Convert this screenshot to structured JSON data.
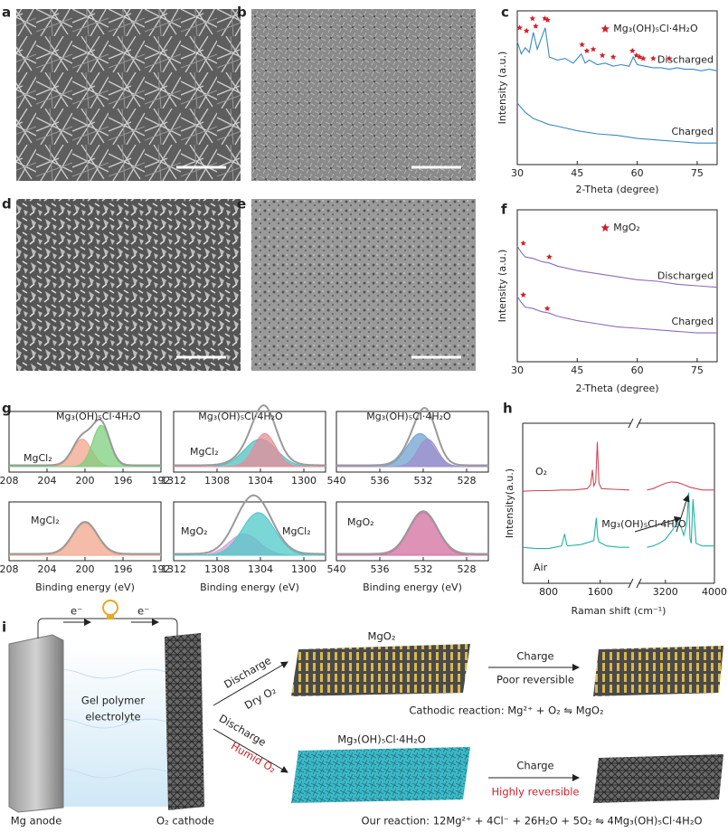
{
  "panel_labels": [
    "a",
    "b",
    "c",
    "d",
    "e",
    "f",
    "g",
    "h",
    "i"
  ],
  "chart_data": [
    {
      "type": "xrd",
      "xlabel": "2-Theta (degree)",
      "ylabel": "Intensity (a.u.)",
      "xlim": [
        30,
        80
      ],
      "xticks": [
        30,
        45,
        60,
        75
      ],
      "ylim": [
        0,
        10
      ],
      "legend": "Mg₃(OH)₅Cl·4H₂O",
      "marker_color": "#d0202a",
      "series": [
        {
          "name": "Discharged",
          "color": "#3b87c7",
          "x": [
            30,
            31,
            32,
            33,
            34,
            35,
            36,
            37,
            38,
            40,
            42,
            44,
            46,
            47,
            48,
            50,
            52,
            54,
            56,
            58,
            59,
            60,
            62,
            64,
            66,
            68,
            70,
            72,
            74,
            76,
            78,
            80
          ],
          "values": [
            8.0,
            7.2,
            7.6,
            7.3,
            8.6,
            7.5,
            8.2,
            8.9,
            7.0,
            6.8,
            6.9,
            6.6,
            7.2,
            6.6,
            6.8,
            6.5,
            6.6,
            6.4,
            6.5,
            6.4,
            7.0,
            6.5,
            6.4,
            6.3,
            6.3,
            6.2,
            6.3,
            6.2,
            6.2,
            6.1,
            6.2,
            6.1
          ]
        },
        {
          "name": "Charged",
          "color": "#3b87c7",
          "x": [
            30,
            32,
            34,
            36,
            38,
            40,
            45,
            50,
            55,
            60,
            65,
            70,
            75,
            80
          ],
          "values": [
            4.0,
            3.4,
            3.0,
            2.8,
            2.6,
            2.5,
            2.2,
            2.0,
            1.9,
            1.7,
            1.6,
            1.5,
            1.4,
            1.4
          ]
        }
      ],
      "peaks": {
        "x": [
          30.6,
          32.3,
          33.8,
          34.6,
          36.9,
          37.6,
          46.2,
          47.4,
          49,
          51.3,
          54,
          58.8,
          59.8,
          60.6,
          61.5,
          64,
          68
        ],
        "y": [
          8.9,
          8.7,
          9.5,
          9.0,
          9.5,
          9.4,
          7.8,
          7.4,
          7.5,
          7.1,
          7.0,
          7.4,
          7.1,
          7.0,
          6.9,
          6.9,
          6.9
        ]
      }
    },
    {
      "type": "xrd",
      "xlabel": "2-Theta (degree)",
      "ylabel": "Intensity (a.u.)",
      "xlim": [
        30,
        80
      ],
      "xticks": [
        30,
        45,
        60,
        75
      ],
      "ylim": [
        0,
        10
      ],
      "legend": "MgO₂",
      "marker_color": "#d0202a",
      "series": [
        {
          "name": "Discharged",
          "color": "#8a6cc2",
          "x": [
            30,
            31,
            32,
            34,
            36,
            38,
            40,
            45,
            50,
            55,
            60,
            65,
            70,
            75,
            80
          ],
          "values": [
            7.6,
            7.2,
            6.9,
            6.8,
            6.6,
            6.5,
            6.3,
            6.0,
            5.8,
            5.6,
            5.4,
            5.3,
            5.1,
            5.0,
            4.9
          ]
        },
        {
          "name": "Charged",
          "color": "#8a6cc2",
          "x": [
            30,
            31,
            32,
            34,
            36,
            38,
            40,
            45,
            50,
            55,
            60,
            65,
            70,
            75,
            80
          ],
          "values": [
            4.3,
            3.9,
            3.6,
            3.5,
            3.3,
            3.2,
            3.0,
            2.7,
            2.5,
            2.3,
            2.2,
            2.1,
            2.0,
            1.9,
            1.9
          ]
        }
      ],
      "peaks": {
        "x": [
          31.5,
          38,
          31.5,
          37.5
        ],
        "y": [
          7.8,
          6.9,
          4.4,
          3.5
        ]
      }
    },
    {
      "type": "xps",
      "xlim": [
        208,
        192
      ],
      "xticks": [
        208,
        204,
        200,
        196,
        192
      ],
      "ylim": [
        0,
        10
      ],
      "labels": [
        "Mg₃(OH)₅Cl·4H₂O",
        "MgCl₂"
      ],
      "components": [
        {
          "color": "#f2a58c",
          "center": 200.3,
          "height": 5,
          "width": 1.0
        },
        {
          "color": "#7dcf7d",
          "center": 198.3,
          "height": 7.5,
          "width": 0.9
        }
      ]
    },
    {
      "type": "xps",
      "xlim": [
        1312,
        1298
      ],
      "xticks": [
        1312,
        1308,
        1304,
        1300
      ],
      "ylim": [
        0,
        10
      ],
      "labels": [
        "Mg₃(OH)₅Cl·4H₂O",
        "MgCl₂"
      ],
      "components": [
        {
          "color": "#4fc0c0",
          "center": 1304,
          "height": 5,
          "width": 1.5
        },
        {
          "color": "#e88c9a",
          "center": 1303.6,
          "height": 6,
          "width": 1.0
        }
      ]
    },
    {
      "type": "xps",
      "xlim": [
        540,
        526
      ],
      "xticks": [
        540,
        536,
        532,
        528
      ],
      "ylim": [
        0,
        10
      ],
      "labels": [
        "Mg₃(OH)₅Cl·4H₂O"
      ],
      "components": [
        {
          "color": "#6fa3cf",
          "center": 532.3,
          "height": 6,
          "width": 1.2
        },
        {
          "color": "#a08fcf",
          "center": 531.6,
          "height": 5,
          "width": 0.9
        }
      ]
    },
    {
      "type": "xps",
      "xlim": [
        208,
        192
      ],
      "xticks": [
        208,
        204,
        200,
        196,
        192
      ],
      "ylim": [
        0,
        10
      ],
      "xlabel": "Binding energy (eV)",
      "labels": [
        "MgCl₂"
      ],
      "components": [
        {
          "color": "#f2a58c",
          "center": 200,
          "height": 6,
          "width": 1.3
        }
      ]
    },
    {
      "type": "xps",
      "xlim": [
        1312,
        1298
      ],
      "xticks": [
        1312,
        1308,
        1304,
        1300
      ],
      "ylim": [
        0,
        10
      ],
      "xlabel": "Binding energy (eV)",
      "labels": [
        "MgO₂",
        "MgCl₂"
      ],
      "components": [
        {
          "color": "#d6a0d6",
          "center": 1305.5,
          "height": 4,
          "width": 1.4
        },
        {
          "color": "#4fc8c8",
          "center": 1304.2,
          "height": 8,
          "width": 1.5
        }
      ]
    },
    {
      "type": "xps",
      "xlim": [
        540,
        526
      ],
      "xticks": [
        540,
        536,
        532,
        528
      ],
      "ylim": [
        0,
        10
      ],
      "xlabel": "Binding energy (eV)",
      "labels": [
        "MgO₂"
      ],
      "components": [
        {
          "color": "#d16d9e",
          "center": 532,
          "height": 8,
          "width": 1.3
        }
      ]
    },
    {
      "type": "raman",
      "xlabel": "Raman shift (cm⁻¹)",
      "ylabel": "Intensity(a.u.)",
      "xlim": [
        400,
        4000
      ],
      "axis_break": [
        2080,
        2760
      ],
      "xticks": [
        800,
        1600,
        3200,
        4000
      ],
      "ylim": [
        0,
        12
      ],
      "annotation": "Mg₃(OH)₅Cl·4H₂O",
      "series": [
        {
          "name": "O₂",
          "color": "#d0485a",
          "x": [
            400,
            600,
            800,
            1000,
            1200,
            1400,
            1450,
            1480,
            1500,
            1530,
            1555,
            1580,
            1620,
            1800,
            2050,
            null,
            2900,
            3000,
            3100,
            3200,
            3300,
            3400,
            3500,
            3600,
            3700,
            3800,
            3900,
            4000
          ],
          "values": [
            6.9,
            6.95,
            6.95,
            7.0,
            7.0,
            7.1,
            7.4,
            8.5,
            7.3,
            7.6,
            10.6,
            7.5,
            7.1,
            7.05,
            7.0,
            null,
            7.0,
            7.1,
            7.3,
            7.5,
            7.6,
            7.55,
            7.4,
            7.2,
            7.1,
            7.0,
            7.0,
            7.0
          ]
        },
        {
          "name": "Air",
          "color": "#1fb5a8",
          "x": [
            400,
            600,
            800,
            1000,
            1050,
            1080,
            1100,
            1300,
            1500,
            1540,
            1560,
            1580,
            1700,
            1900,
            2050,
            null,
            2900,
            3000,
            3100,
            3200,
            3300,
            3400,
            3450,
            3500,
            3550,
            3580,
            3600,
            3620,
            3650,
            3700,
            3800,
            4000
          ],
          "values": [
            2.7,
            2.6,
            2.6,
            2.8,
            3.7,
            2.9,
            2.8,
            2.9,
            3.2,
            4.9,
            3.5,
            3.1,
            2.8,
            2.7,
            2.7,
            null,
            2.7,
            2.8,
            3.0,
            3.3,
            3.9,
            4.6,
            4.3,
            3.6,
            4.5,
            6.8,
            3.4,
            3.0,
            6.3,
            3.0,
            2.8,
            2.8
          ]
        }
      ]
    }
  ],
  "diagram": {
    "electron_left": "e⁻",
    "electron_right": "e⁻",
    "electrolyte": [
      "Gel polymer",
      "electrolyte"
    ],
    "anode": "Mg anode",
    "cathode": "O₂ cathode",
    "dry_path": {
      "action": "Discharge",
      "condition": "Dry O₂",
      "product": "MgO₂",
      "charge": "Charge",
      "reversibility": "Poor reversible",
      "reaction": "Cathodic reaction: Mg²⁺ + O₂ ⇋ MgO₂"
    },
    "humid_path": {
      "action": "Discharge",
      "condition": "Humid O₂",
      "product": "Mg₃(OH)₅Cl·4H₂O",
      "charge": "Charge",
      "reversibility": "Highly reversible",
      "reaction": "Our reaction: 12Mg²⁺ + 4Cl⁻ + 26H₂O + 5O₂ ⇋ 4Mg₃(OH)₅Cl·4H₂O"
    }
  }
}
